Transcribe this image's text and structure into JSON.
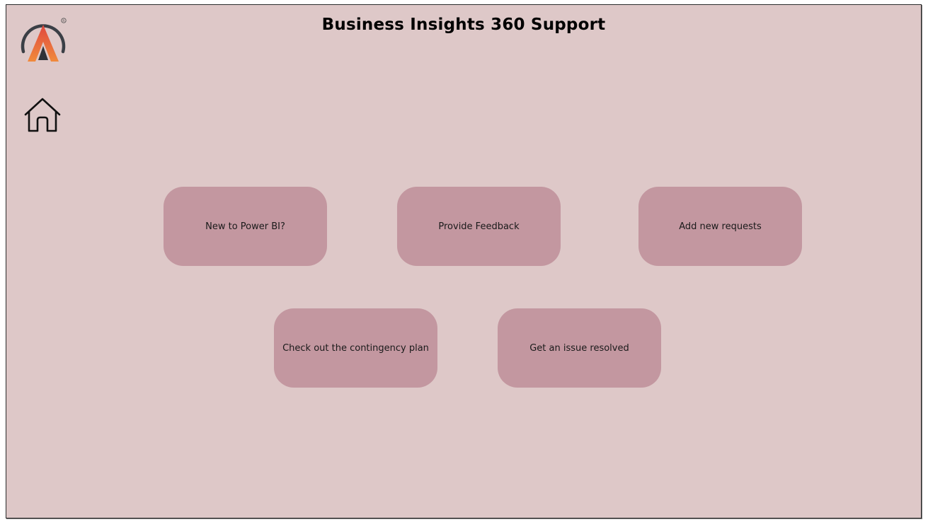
{
  "header": {
    "title": "Business Insights 360 Support"
  },
  "logo": {
    "icon": "brand-a-logo-icon",
    "mark": "®",
    "colors": {
      "ring": "#3b3f46",
      "gradient_top": "#e0483f",
      "gradient_bottom": "#f08a3c"
    }
  },
  "nav": {
    "home_icon": "home-icon"
  },
  "tiles": [
    {
      "label": "New to Power BI?"
    },
    {
      "label": "Provide Feedback"
    },
    {
      "label": "Add new requests"
    },
    {
      "label": "Check out the contingency plan"
    },
    {
      "label": "Get an issue resolved"
    }
  ],
  "theme": {
    "background": "#dec8c8",
    "tile": "#c397a0"
  }
}
